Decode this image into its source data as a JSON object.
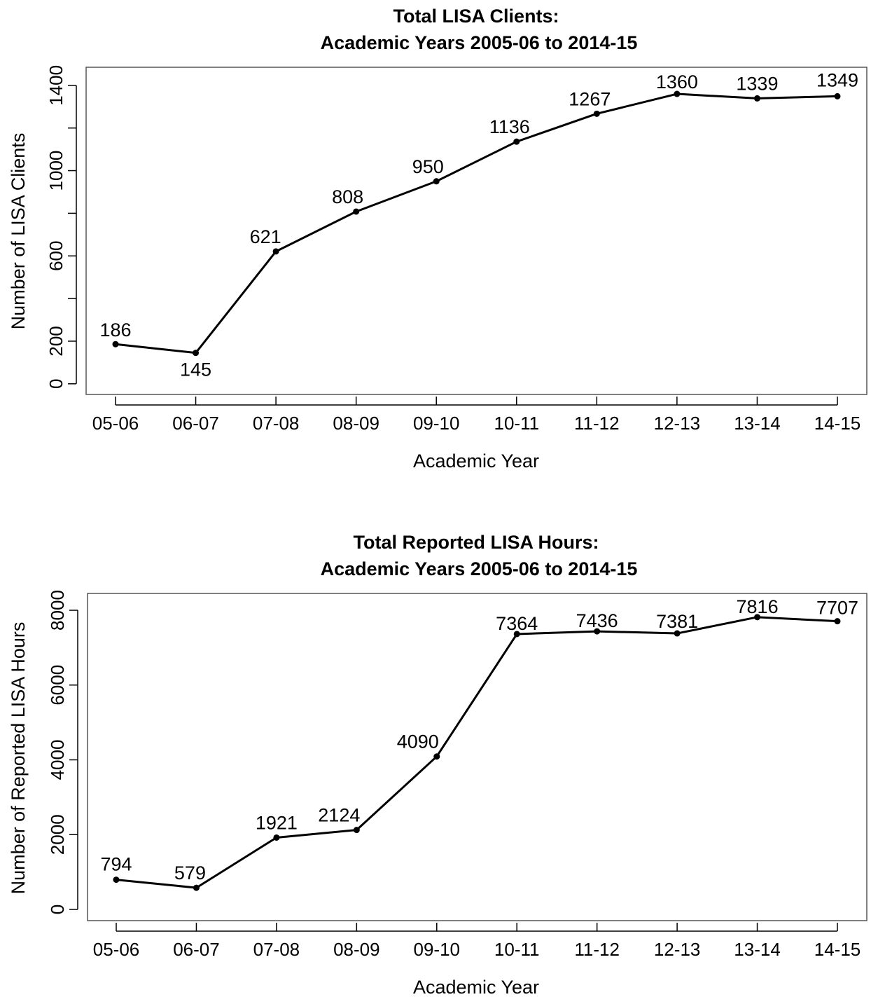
{
  "chart_data": [
    {
      "type": "line",
      "title": "Total LISA Clients:",
      "subtitle": "Academic Years 2005-06 to 2014-15",
      "xlabel": "Academic Year",
      "ylabel": "Number of LISA Clients",
      "categories": [
        "05-06",
        "06-07",
        "07-08",
        "08-09",
        "09-10",
        "10-11",
        "11-12",
        "12-13",
        "13-14",
        "14-15"
      ],
      "values": [
        186,
        145,
        621,
        808,
        950,
        1136,
        1267,
        1360,
        1339,
        1349
      ],
      "data_labels": [
        "186",
        "145",
        "621",
        "808",
        "950",
        "1136",
        "1267",
        "1360",
        "1339",
        "1349"
      ],
      "yticks": [
        0,
        200,
        600,
        1000,
        1400
      ],
      "yticks_minor": [
        400,
        800,
        1200
      ],
      "ylim": [
        -50,
        1485
      ],
      "grid": false,
      "marker": "dot",
      "color": "#000000"
    },
    {
      "type": "line",
      "title": "Total Reported LISA Hours:",
      "subtitle": "Academic Years 2005-06 to 2014-15",
      "xlabel": "Academic Year",
      "ylabel": "Number of Reported LISA Hours",
      "categories": [
        "05-06",
        "06-07",
        "07-08",
        "08-09",
        "09-10",
        "10-11",
        "11-12",
        "12-13",
        "13-14",
        "14-15"
      ],
      "values": [
        794,
        579,
        1921,
        2124,
        4090,
        7364,
        7436,
        7381,
        7816,
        7707
      ],
      "data_labels": [
        "794",
        "579",
        "1921",
        "2124",
        "4090",
        "7364",
        "7436",
        "7381",
        "7816",
        "7707"
      ],
      "yticks": [
        0,
        2000,
        4000,
        6000,
        8000
      ],
      "yticks_minor": [],
      "ylim": [
        -300,
        8450
      ],
      "grid": false,
      "marker": "dot",
      "color": "#000000"
    }
  ]
}
